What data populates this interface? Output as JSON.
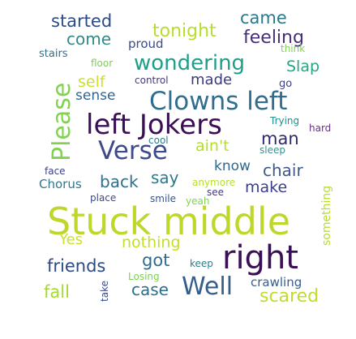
{
  "words": [
    {
      "text": "Stuck middle",
      "color": "#bfd62a"
    },
    {
      "text": "right",
      "color": "#3b0f55"
    },
    {
      "text": "Clowns left",
      "color": "#2f6e8e"
    },
    {
      "text": "left Jokers",
      "color": "#3b0f55"
    },
    {
      "text": "Verse",
      "color": "#3e4a89"
    },
    {
      "text": "Well",
      "color": "#345f8d"
    },
    {
      "text": "Please",
      "color": "#7fd34e"
    },
    {
      "text": "wondering",
      "color": "#1f9e89"
    },
    {
      "text": "man",
      "color": "#2c2a6b"
    },
    {
      "text": "tonight",
      "color": "#b7de2c"
    },
    {
      "text": "feeling",
      "color": "#472d7b"
    },
    {
      "text": "came",
      "color": "#2a788e"
    },
    {
      "text": "started",
      "color": "#2c4a83"
    },
    {
      "text": "come",
      "color": "#2f8a8a"
    },
    {
      "text": "Slap",
      "color": "#22a784"
    },
    {
      "text": "self",
      "color": "#cfe12a"
    },
    {
      "text": "made",
      "color": "#3b3b7c"
    },
    {
      "text": "sense",
      "color": "#33648d"
    },
    {
      "text": "ain't",
      "color": "#b5de2b"
    },
    {
      "text": "back",
      "color": "#2d6f8e"
    },
    {
      "text": "say",
      "color": "#2a7a8e"
    },
    {
      "text": "know",
      "color": "#30688e"
    },
    {
      "text": "chair",
      "color": "#40578b"
    },
    {
      "text": "make",
      "color": "#3b3f85"
    },
    {
      "text": "Chorus",
      "color": "#30768e"
    },
    {
      "text": "Yes",
      "color": "#cee12a"
    },
    {
      "text": "nothing",
      "color": "#c5df25"
    },
    {
      "text": "got",
      "color": "#2d6e8e"
    },
    {
      "text": "friends",
      "color": "#2c4a83"
    },
    {
      "text": "case",
      "color": "#2a6f8e"
    },
    {
      "text": "fall",
      "color": "#a6da31"
    },
    {
      "text": "scared",
      "color": "#bede2b"
    },
    {
      "text": "crawling",
      "color": "#355f8d"
    },
    {
      "text": "proud",
      "color": "#3b4a8a"
    },
    {
      "text": "stairs",
      "color": "#2c718e"
    },
    {
      "text": "floor",
      "color": "#7ad151"
    },
    {
      "text": "think",
      "color": "#7fd34e"
    },
    {
      "text": "go",
      "color": "#3b3f85"
    },
    {
      "text": "control",
      "color": "#433a7c"
    },
    {
      "text": "Trying",
      "color": "#22908d"
    },
    {
      "text": "hard",
      "color": "#6c2e88"
    },
    {
      "text": "cool",
      "color": "#2d7f8e"
    },
    {
      "text": "sleep",
      "color": "#3a8f8b"
    },
    {
      "text": "face",
      "color": "#3b3f85"
    },
    {
      "text": "anymore",
      "color": "#b7de2c"
    },
    {
      "text": "see",
      "color": "#433a7c"
    },
    {
      "text": "place",
      "color": "#3b4a8a"
    },
    {
      "text": "smile",
      "color": "#3a5388"
    },
    {
      "text": "yeah",
      "color": "#7fd34e"
    },
    {
      "text": "keep",
      "color": "#2c7e8e"
    },
    {
      "text": "Losing",
      "color": "#7ad151"
    },
    {
      "text": "take",
      "color": "#3b4a8a"
    },
    {
      "text": "something",
      "color": "#b7de2c"
    }
  ]
}
